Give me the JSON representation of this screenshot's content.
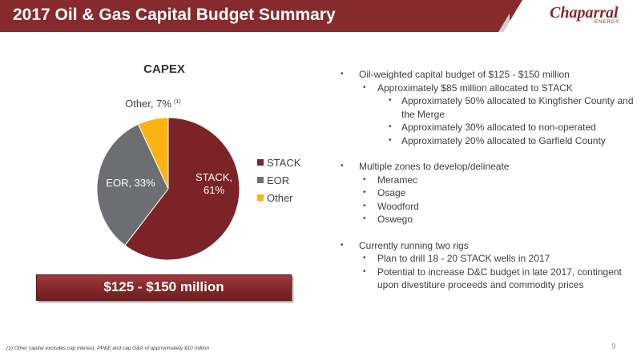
{
  "header": {
    "title": "2017 Oil & Gas Capital Budget Summary",
    "logo_main": "Chaparral",
    "logo_sub": "ENERGY",
    "colors": {
      "band": "#862a2d"
    }
  },
  "chart_data": {
    "type": "pie",
    "title": "CAPEX",
    "categories": [
      "STACK",
      "EOR",
      "Other"
    ],
    "values": [
      61,
      33,
      7
    ],
    "colors": [
      "#7b2327",
      "#6d6e71",
      "#f9b313"
    ],
    "slice_labels": [
      [
        "STACK,",
        "61%"
      ],
      [
        "EOR, 33%"
      ],
      [
        "Other, 7%"
      ]
    ],
    "other_superscript": "(1)",
    "legend": {
      "placement": "right",
      "items": [
        "STACK",
        "EOR",
        "Other"
      ]
    }
  },
  "budget_banner": "$125 - $150 million",
  "bullets": [
    {
      "level": 1,
      "text": "Oil-weighted capital budget of $125 - $150 million"
    },
    {
      "level": 2,
      "text": "Approximately $85 million allocated to STACK"
    },
    {
      "level": 3,
      "text": "Approximately 50% allocated to Kingfisher County and the Merge"
    },
    {
      "level": 3,
      "text": "Approximately 30% allocated to non-operated"
    },
    {
      "level": 3,
      "text": "Approximately 20% allocated to Garfield County"
    },
    {
      "level": 1,
      "text": "Multiple zones to develop/delineate"
    },
    {
      "level": 2,
      "text": "Meramec"
    },
    {
      "level": 2,
      "text": "Osage"
    },
    {
      "level": 2,
      "text": "Woodford"
    },
    {
      "level": 2,
      "text": "Oswego"
    },
    {
      "level": 1,
      "text": "Currently running two rigs"
    },
    {
      "level": 2,
      "text": "Plan to drill 18 - 20 STACK wells in 2017"
    },
    {
      "level": 2,
      "text": "Potential to increase D&C budget in late 2017, contingent upon divestiture proceeds and commodity prices"
    }
  ],
  "bullet_glyph": "•",
  "footnote": "(1) Other capital excludes cap interest, PP&E and cap G&A of approximately $10 million",
  "page_number": "9"
}
